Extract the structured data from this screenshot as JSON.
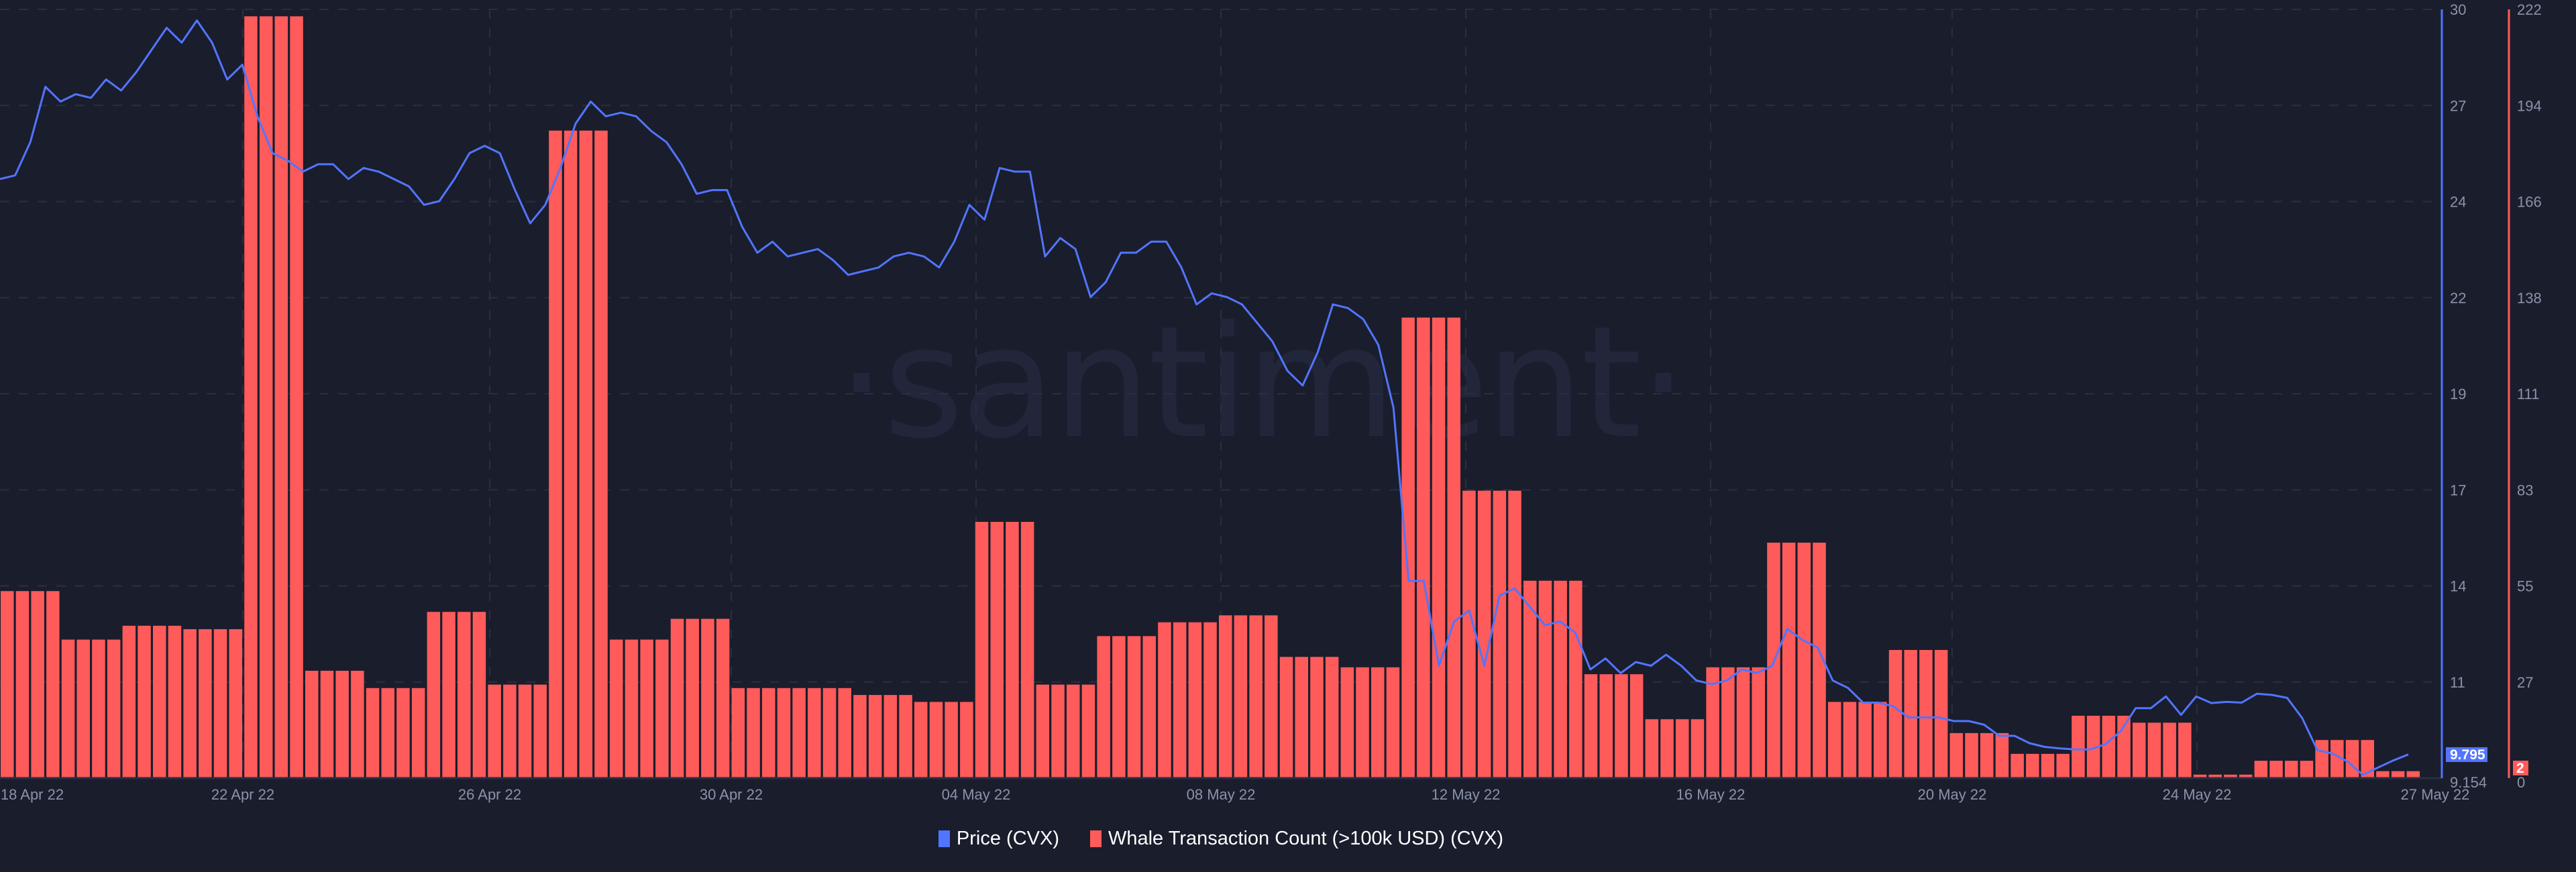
{
  "watermark": "·santiment·",
  "legend": [
    {
      "label": "Price (CVX)",
      "color": "#5275ff"
    },
    {
      "label": "Whale Transaction Count (>100k USD) (CVX)",
      "color": "#ff5b5b"
    }
  ],
  "axes": {
    "price_ticks": [
      "30",
      "27",
      "24",
      "22",
      "19",
      "17",
      "14",
      "11",
      "9.154"
    ],
    "count_ticks": [
      "222",
      "194",
      "166",
      "138",
      "111",
      "83",
      "55",
      "27",
      "0"
    ],
    "x_ticks": [
      "18 Apr 22",
      "22 Apr 22",
      "26 Apr 22",
      "30 Apr 22",
      "04 May 22",
      "08 May 22",
      "12 May 22",
      "16 May 22",
      "20 May 22",
      "24 May 22",
      "27 May 22"
    ],
    "current_price_label": "9.795",
    "current_count_label": "2"
  },
  "colors": {
    "background": "#1a1d2c",
    "price": "#5275ff",
    "count": "#ff5b5b",
    "grid": "#2a2e40",
    "tick_text": "#8a93a8"
  },
  "chart_data": {
    "type": "bar+line",
    "title": "",
    "xlabel": "",
    "ylabel_left": "",
    "x_range": [
      "18 Apr 22",
      "27 May 22"
    ],
    "interval": "6h",
    "legend_position": "bottom-center",
    "grid": true,
    "series": [
      {
        "name": "Whale Transaction Count (>100k USD) (CVX)",
        "type": "bar",
        "axis": "right",
        "ylim": [
          0,
          222
        ],
        "daily_groups_of_4_values": [
          54,
          40,
          44,
          43,
          220,
          31,
          26,
          48,
          27,
          187,
          40,
          46,
          26,
          26,
          24,
          22,
          74,
          27,
          41,
          45,
          47,
          35,
          32,
          133,
          83,
          57,
          30,
          17,
          32,
          68,
          22,
          37,
          13,
          7,
          18,
          16,
          1,
          5,
          11,
          2
        ]
      },
      {
        "name": "Price (CVX)",
        "type": "line",
        "axis": "left",
        "ylim": [
          9.154,
          30
        ],
        "values": [
          25.4,
          25.5,
          26.4,
          27.9,
          27.5,
          27.7,
          27.6,
          28.1,
          27.8,
          28.3,
          28.9,
          29.5,
          29.1,
          29.7,
          29.1,
          28.1,
          28.5,
          27.1,
          26.1,
          25.9,
          25.6,
          25.8,
          25.8,
          25.4,
          25.7,
          25.6,
          25.4,
          25.2,
          24.7,
          24.8,
          25.4,
          26.1,
          26.3,
          26.1,
          25.1,
          24.2,
          24.7,
          25.7,
          26.9,
          27.5,
          27.1,
          27.2,
          27.1,
          26.7,
          26.4,
          25.8,
          25.0,
          25.1,
          25.1,
          24.1,
          23.4,
          23.7,
          23.3,
          23.4,
          23.5,
          23.2,
          22.8,
          22.9,
          23.0,
          23.3,
          23.4,
          23.3,
          23.0,
          23.7,
          24.7,
          24.3,
          25.7,
          25.6,
          25.6,
          23.3,
          23.8,
          23.5,
          22.2,
          22.6,
          23.4,
          23.4,
          23.7,
          23.7,
          23.0,
          22.0,
          22.3,
          22.2,
          22.0,
          21.5,
          21.0,
          20.2,
          19.8,
          20.7,
          22.0,
          21.9,
          21.6,
          20.9,
          19.2,
          14.5,
          14.5,
          12.2,
          13.4,
          13.7,
          12.2,
          14.1,
          14.3,
          13.8,
          13.3,
          13.4,
          13.1,
          12.1,
          12.4,
          12.0,
          12.3,
          12.2,
          12.5,
          12.2,
          11.8,
          11.7,
          11.8,
          12.1,
          12.0,
          12.2,
          13.2,
          12.9,
          12.7,
          11.8,
          11.6,
          11.2,
          11.2,
          11.1,
          10.8,
          10.8,
          10.8,
          10.7,
          10.7,
          10.6,
          10.3,
          10.3,
          10.1,
          10.0,
          9.96,
          9.93,
          9.93,
          10.07,
          10.42,
          11.05,
          11.05,
          11.37,
          10.87,
          11.37,
          11.19,
          11.22,
          11.2,
          11.44,
          11.41,
          11.33,
          10.78,
          9.91,
          9.82,
          9.6,
          9.24,
          9.44,
          9.63,
          9.795
        ]
      }
    ]
  }
}
